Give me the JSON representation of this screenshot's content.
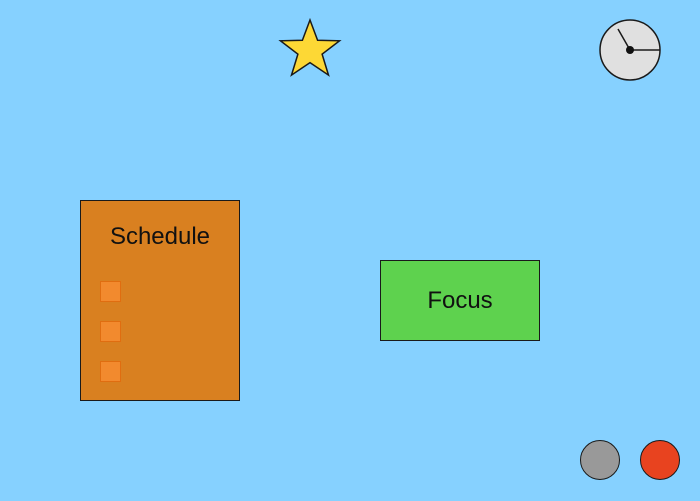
{
  "schedule": {
    "title": "Schedule",
    "task_count": 3
  },
  "focus": {
    "label": "Focus"
  },
  "icons": {
    "top_left": "star-icon",
    "top_right": "clock-icon"
  },
  "colors": {
    "background": "#86d1ff",
    "star": "#fdd835",
    "clock_face": "#e0e0e0",
    "schedule_card": "#d98020",
    "task_checkbox": "#f28a2e",
    "focus_button": "#5ed24e",
    "gray_button": "#999999",
    "red_button": "#e8431f"
  }
}
